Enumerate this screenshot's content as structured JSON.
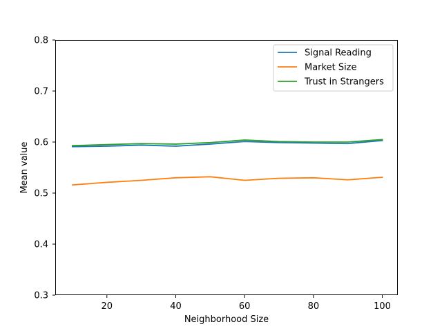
{
  "chart_data": {
    "type": "line",
    "title": "",
    "xlabel": "Neighborhood Size",
    "ylabel": "Mean value",
    "x": [
      10,
      20,
      30,
      40,
      50,
      60,
      70,
      80,
      90,
      100
    ],
    "xlim": [
      5,
      104.5
    ],
    "ylim": [
      0.3,
      0.8
    ],
    "xticks": [
      20,
      40,
      60,
      80,
      100
    ],
    "yticks": [
      0.3,
      0.4,
      0.5,
      0.6,
      0.7,
      0.8
    ],
    "xtick_labels": [
      "20",
      "40",
      "60",
      "80",
      "100"
    ],
    "ytick_labels": [
      "0.3",
      "0.4",
      "0.5",
      "0.6",
      "0.7",
      "0.8"
    ],
    "grid": false,
    "legend_position": "top-right",
    "series": [
      {
        "name": "Signal Reading",
        "color": "#1f77b4",
        "values": [
          0.591,
          0.592,
          0.594,
          0.592,
          0.596,
          0.601,
          0.599,
          0.598,
          0.597,
          0.603
        ]
      },
      {
        "name": "Market Size",
        "color": "#ff7f0e",
        "values": [
          0.516,
          0.521,
          0.525,
          0.53,
          0.532,
          0.525,
          0.529,
          0.53,
          0.526,
          0.531
        ]
      },
      {
        "name": "Trust in Strangers",
        "color": "#2ca02c",
        "values": [
          0.593,
          0.595,
          0.597,
          0.596,
          0.599,
          0.604,
          0.601,
          0.6,
          0.6,
          0.605
        ]
      }
    ]
  }
}
